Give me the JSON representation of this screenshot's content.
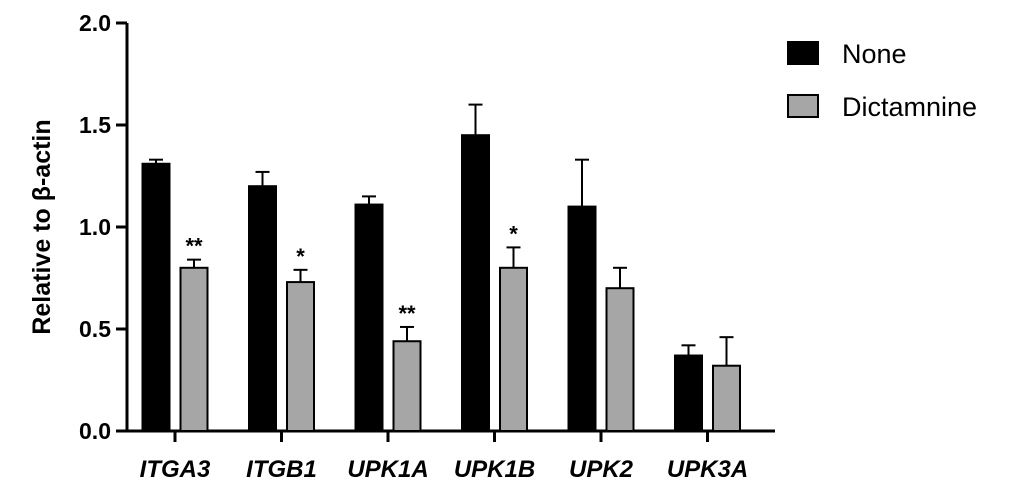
{
  "chart_data": {
    "type": "bar",
    "title": "",
    "xlabel": "",
    "ylabel": "Relative to β-actin",
    "ylim": [
      0,
      2.0
    ],
    "yticks": [
      "0.0",
      "0.5",
      "1.0",
      "1.5",
      "2.0"
    ],
    "categories": [
      "ITGA3",
      "ITGB1",
      "UPK1A",
      "UPK1B",
      "UPK2",
      "UPK3A"
    ],
    "series": [
      {
        "name": "None",
        "color": "#000000",
        "values": [
          1.31,
          1.2,
          1.11,
          1.45,
          1.1,
          0.37
        ],
        "errors": [
          0.02,
          0.07,
          0.04,
          0.15,
          0.23,
          0.05
        ],
        "significance": [
          "",
          "",
          "",
          "",
          "",
          ""
        ]
      },
      {
        "name": "Dictamnine",
        "color": "#a6a6a6",
        "values": [
          0.8,
          0.73,
          0.44,
          0.8,
          0.7,
          0.32
        ],
        "errors": [
          0.04,
          0.06,
          0.07,
          0.1,
          0.1,
          0.14
        ],
        "significance": [
          "**",
          "*",
          "**",
          "*",
          "",
          ""
        ]
      }
    ],
    "legend": "top-right",
    "grid": false
  }
}
